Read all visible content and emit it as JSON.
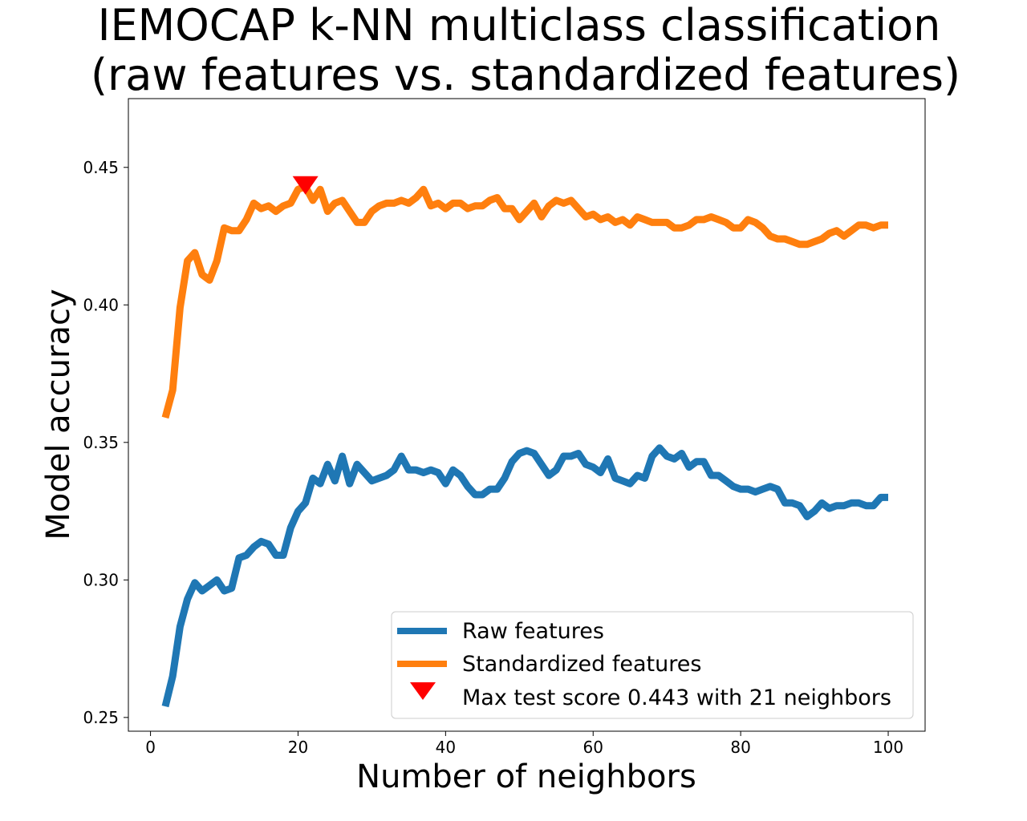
{
  "chart_data": {
    "type": "line",
    "title_line1": "IEMOCAP k-NN multiclass classification",
    "title_line2": "(raw features vs. standardized features)",
    "xlabel": "Number of neighbors",
    "ylabel": "Model accuracy",
    "xlim": [
      -3,
      105
    ],
    "ylim": [
      0.245,
      0.475
    ],
    "xticks": [
      0,
      20,
      40,
      60,
      80,
      100
    ],
    "xtick_labels": [
      "0",
      "20",
      "40",
      "60",
      "80",
      "100"
    ],
    "yticks": [
      0.25,
      0.3,
      0.35,
      0.4,
      0.45
    ],
    "ytick_labels": [
      "0.25",
      "0.30",
      "0.35",
      "0.40",
      "0.45"
    ],
    "grid": false,
    "legend_position": "lower-right",
    "x": [
      2,
      3,
      4,
      5,
      6,
      7,
      8,
      9,
      10,
      11,
      12,
      13,
      14,
      15,
      16,
      17,
      18,
      19,
      20,
      21,
      22,
      23,
      24,
      25,
      26,
      27,
      28,
      29,
      30,
      31,
      32,
      33,
      34,
      35,
      36,
      37,
      38,
      39,
      40,
      41,
      42,
      43,
      44,
      45,
      46,
      47,
      48,
      49,
      50,
      51,
      52,
      53,
      54,
      55,
      56,
      57,
      58,
      59,
      60,
      61,
      62,
      63,
      64,
      65,
      66,
      67,
      68,
      69,
      70,
      71,
      72,
      73,
      74,
      75,
      76,
      77,
      78,
      79,
      80,
      81,
      82,
      83,
      84,
      85,
      86,
      87,
      88,
      89,
      90,
      91,
      92,
      93,
      94,
      95,
      96,
      97,
      98,
      99,
      100
    ],
    "series": [
      {
        "name": "Raw features",
        "color": "#1f77b4",
        "values": [
          0.254,
          0.265,
          0.283,
          0.293,
          0.299,
          0.296,
          0.298,
          0.3,
          0.296,
          0.297,
          0.308,
          0.309,
          0.312,
          0.314,
          0.313,
          0.309,
          0.309,
          0.319,
          0.325,
          0.328,
          0.337,
          0.335,
          0.342,
          0.336,
          0.345,
          0.335,
          0.342,
          0.339,
          0.336,
          0.337,
          0.338,
          0.34,
          0.345,
          0.34,
          0.34,
          0.339,
          0.34,
          0.339,
          0.335,
          0.34,
          0.338,
          0.334,
          0.331,
          0.331,
          0.333,
          0.333,
          0.337,
          0.343,
          0.346,
          0.347,
          0.346,
          0.342,
          0.338,
          0.34,
          0.345,
          0.345,
          0.346,
          0.342,
          0.341,
          0.339,
          0.344,
          0.337,
          0.336,
          0.335,
          0.338,
          0.337,
          0.345,
          0.348,
          0.345,
          0.344,
          0.346,
          0.341,
          0.343,
          0.343,
          0.338,
          0.338,
          0.336,
          0.334,
          0.333,
          0.333,
          0.332,
          0.333,
          0.334,
          0.333,
          0.328,
          0.328,
          0.327,
          0.323,
          0.325,
          0.328,
          0.326,
          0.327,
          0.327,
          0.328,
          0.328,
          0.327,
          0.327,
          0.33,
          0.33
        ]
      },
      {
        "name": "Standardized features",
        "color": "#ff7f0e",
        "values": [
          0.359,
          0.369,
          0.399,
          0.416,
          0.419,
          0.411,
          0.409,
          0.416,
          0.428,
          0.427,
          0.427,
          0.431,
          0.437,
          0.435,
          0.436,
          0.434,
          0.436,
          0.437,
          0.442,
          0.443,
          0.438,
          0.442,
          0.434,
          0.437,
          0.438,
          0.434,
          0.43,
          0.43,
          0.434,
          0.436,
          0.437,
          0.437,
          0.438,
          0.437,
          0.439,
          0.442,
          0.436,
          0.437,
          0.435,
          0.437,
          0.437,
          0.435,
          0.436,
          0.436,
          0.438,
          0.439,
          0.435,
          0.435,
          0.431,
          0.434,
          0.437,
          0.432,
          0.436,
          0.438,
          0.437,
          0.438,
          0.435,
          0.432,
          0.433,
          0.431,
          0.432,
          0.43,
          0.431,
          0.429,
          0.432,
          0.431,
          0.43,
          0.43,
          0.43,
          0.428,
          0.428,
          0.429,
          0.431,
          0.431,
          0.432,
          0.431,
          0.43,
          0.428,
          0.428,
          0.431,
          0.43,
          0.428,
          0.425,
          0.424,
          0.424,
          0.423,
          0.422,
          0.422,
          0.423,
          0.424,
          0.426,
          0.427,
          0.425,
          0.427,
          0.429,
          0.429,
          0.428,
          0.429,
          0.429
        ]
      }
    ],
    "marker": {
      "label": "Max test score 0.443 with 21 neighbors",
      "x": 21,
      "y": 0.443,
      "color": "#ff0000",
      "shape": "triangle-down"
    }
  }
}
